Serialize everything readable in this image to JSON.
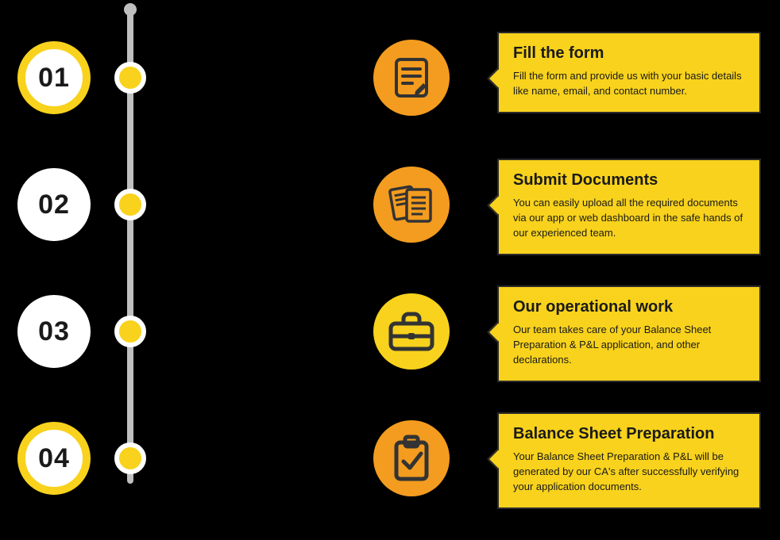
{
  "colors": {
    "bg": "#000000",
    "timeline": "#bfbfbf",
    "yellow": "#f8d21c",
    "cardBorder": "#2b2b2b",
    "iconBg": "#f39c1f",
    "iconStroke": "#333333",
    "text": "#1a1a1a",
    "white": "#ffffff"
  },
  "layout": {
    "numLeft": 22,
    "numSize": 92,
    "numBorder": 10,
    "dotLeft": 144,
    "dotSize": 40,
    "iconLeft": 470,
    "iconSize": 96,
    "cardLeft": 626,
    "cardWidth": 332,
    "rowTop": [
      52,
      212,
      372,
      532
    ],
    "rowCenterY": [
      98,
      258,
      418,
      578
    ]
  },
  "steps": [
    {
      "num": "01",
      "ring": "#f8d21c",
      "dot": "#f8d21c",
      "icon": "form-icon",
      "iconBg": "#f39c1f",
      "title": "Fill the form",
      "desc": "Fill the form and provide us with your basic details like name, email, and contact number.",
      "cardBg": "#f8d21c"
    },
    {
      "num": "02",
      "ring": "#ffffff",
      "dot": "#f8d21c",
      "icon": "documents-icon",
      "iconBg": "#f39c1f",
      "title": "Submit Documents",
      "desc": "You can easily upload all the required documents via our app or web dashboard in the safe hands of our experienced team.",
      "cardBg": "#f8d21c"
    },
    {
      "num": "03",
      "ring": "#ffffff",
      "dot": "#f8d21c",
      "icon": "briefcase-icon",
      "iconBg": "#f8d21c",
      "title": "Our operational work",
      "desc": "Our team takes care of your Balance Sheet Preparation & P&L application, and other declarations.",
      "cardBg": "#f8d21c"
    },
    {
      "num": "04",
      "ring": "#f8d21c",
      "dot": "#f8d21c",
      "icon": "clipboard-check-icon",
      "iconBg": "#f39c1f",
      "title": "Balance Sheet Preparation",
      "desc": "Your Balance Sheet Preparation & P&L will be generated by our CA's after successfully verifying your application documents.",
      "cardBg": "#f8d21c"
    }
  ]
}
